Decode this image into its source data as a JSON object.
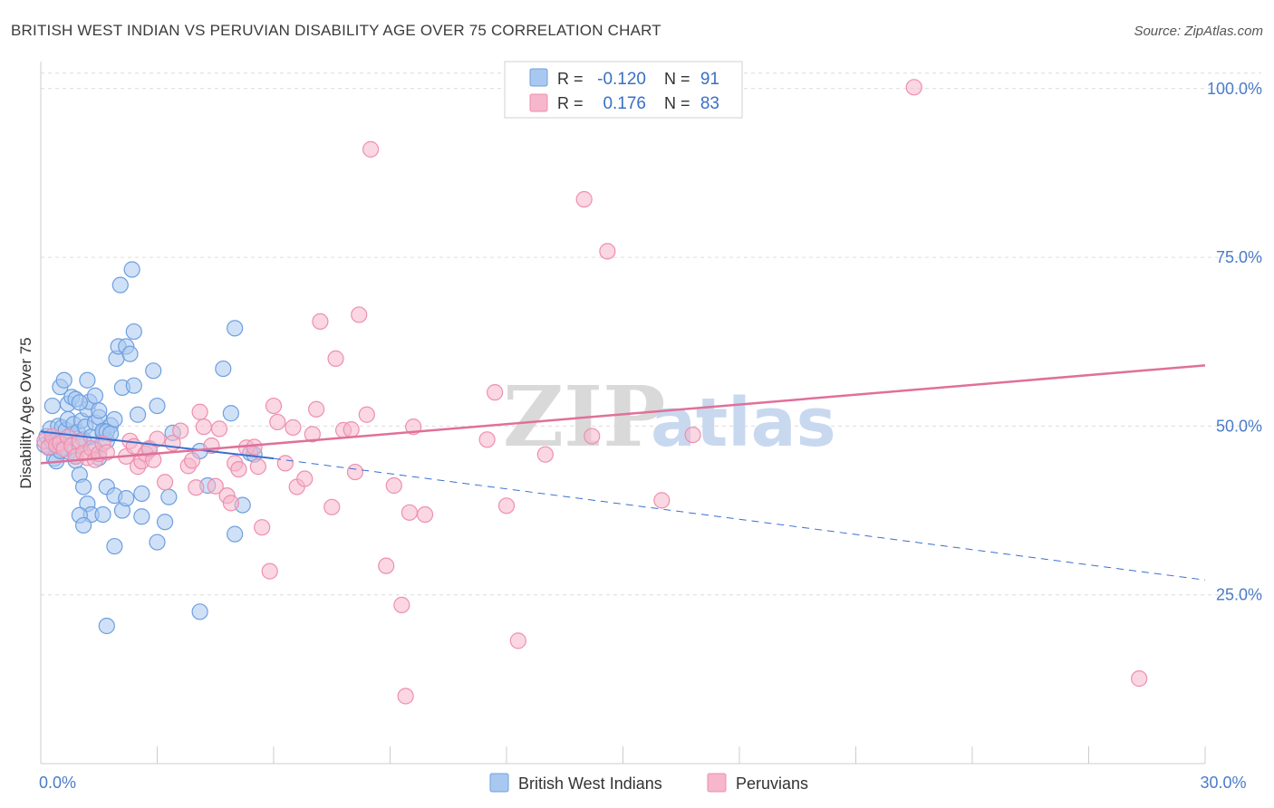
{
  "title": "BRITISH WEST INDIAN VS PERUVIAN DISABILITY AGE OVER 75 CORRELATION CHART",
  "source": "Source: ZipAtlas.com",
  "watermark": {
    "zip": "ZIP",
    "atlas": "atlas"
  },
  "colors": {
    "blue_fill": "#a9c8f0",
    "blue_stroke": "#6d9fe0",
    "blue_line": "#3a6fd0",
    "pink_fill": "#f6b6cb",
    "pink_stroke": "#ee8fae",
    "pink_line": "#e0709a",
    "grid": "#dcdcdc",
    "axis": "#cccccc"
  },
  "legend_top": {
    "rows": [
      {
        "r_label": "R =",
        "r_value": "-0.120",
        "n_label": "N =",
        "n_value": "91"
      },
      {
        "r_label": "R =",
        "r_value": "0.176",
        "n_label": "N =",
        "n_value": "83"
      }
    ]
  },
  "legend_bottom": {
    "items": [
      "British West Indians",
      "Peruvians"
    ]
  },
  "chart_data": {
    "type": "scatter",
    "ylabel": "Disability Age Over 75",
    "xlim": [
      0,
      30
    ],
    "ylim": [
      0,
      104
    ],
    "x_tick_labels": [
      {
        "value": 0,
        "label": "0.0%"
      },
      {
        "value": 30,
        "label": "30.0%"
      }
    ],
    "y_tick_labels": [
      {
        "value": 25,
        "label": "25.0%"
      },
      {
        "value": 50,
        "label": "50.0%"
      },
      {
        "value": 75,
        "label": "75.0%"
      },
      {
        "value": 100,
        "label": "100.0%"
      }
    ],
    "series": [
      {
        "name": "British West Indians",
        "trend": {
          "x0": 0,
          "y0": 49.2,
          "x1": 6,
          "y1": 45.2,
          "dashed_to_x": 30,
          "dashed_to_y": 27.2
        },
        "points": [
          [
            0.1,
            47.2
          ],
          [
            0.15,
            48.5
          ],
          [
            0.2,
            46.8
          ],
          [
            0.25,
            49.6
          ],
          [
            0.3,
            47.6
          ],
          [
            0.35,
            45.2
          ],
          [
            0.4,
            48.1
          ],
          [
            0.45,
            50.0
          ],
          [
            0.5,
            46.5
          ],
          [
            0.55,
            49.8
          ],
          [
            0.6,
            47.9
          ],
          [
            0.65,
            49.4
          ],
          [
            0.7,
            51.0
          ],
          [
            0.72,
            46.2
          ],
          [
            0.8,
            48.7
          ],
          [
            0.85,
            50.3
          ],
          [
            0.9,
            45.5
          ],
          [
            0.95,
            49.1
          ],
          [
            1.0,
            47.3
          ],
          [
            1.05,
            50.8
          ],
          [
            1.1,
            48.0
          ],
          [
            1.15,
            49.9
          ],
          [
            1.2,
            52.5
          ],
          [
            1.25,
            53.6
          ],
          [
            1.3,
            48.4
          ],
          [
            1.4,
            50.5
          ],
          [
            1.5,
            51.3
          ],
          [
            1.6,
            49.0
          ],
          [
            1.7,
            47.8
          ],
          [
            1.8,
            50.1
          ],
          [
            0.3,
            53.0
          ],
          [
            0.5,
            55.8
          ],
          [
            0.6,
            56.8
          ],
          [
            0.7,
            53.3
          ],
          [
            0.8,
            54.3
          ],
          [
            0.9,
            54.0
          ],
          [
            1.0,
            53.5
          ],
          [
            1.2,
            56.8
          ],
          [
            1.4,
            54.5
          ],
          [
            1.5,
            52.3
          ],
          [
            0.4,
            44.8
          ],
          [
            0.5,
            46.3
          ],
          [
            0.9,
            44.9
          ],
          [
            1.0,
            42.8
          ],
          [
            1.1,
            41.0
          ],
          [
            1.2,
            38.5
          ],
          [
            1.3,
            36.9
          ],
          [
            1.4,
            46.5
          ],
          [
            1.5,
            45.3
          ],
          [
            1.6,
            49.3
          ],
          [
            1.7,
            49.2
          ],
          [
            1.8,
            48.9
          ],
          [
            1.9,
            51.0
          ],
          [
            1.95,
            60.0
          ],
          [
            2.0,
            61.8
          ],
          [
            2.1,
            55.7
          ],
          [
            2.2,
            61.8
          ],
          [
            2.3,
            60.7
          ],
          [
            2.4,
            56.0
          ],
          [
            2.05,
            70.9
          ],
          [
            2.35,
            73.2
          ],
          [
            2.4,
            64.0
          ],
          [
            2.6,
            40.0
          ],
          [
            2.8,
            46.5
          ],
          [
            2.9,
            58.2
          ],
          [
            3.0,
            53.0
          ],
          [
            2.5,
            51.7
          ],
          [
            1.7,
            41.0
          ],
          [
            1.9,
            39.7
          ],
          [
            2.1,
            37.5
          ],
          [
            2.2,
            39.3
          ],
          [
            2.6,
            36.6
          ],
          [
            3.2,
            35.8
          ],
          [
            3.3,
            39.5
          ],
          [
            3.0,
            32.8
          ],
          [
            1.0,
            36.8
          ],
          [
            1.1,
            35.3
          ],
          [
            1.6,
            36.9
          ],
          [
            1.9,
            32.2
          ],
          [
            1.7,
            20.4
          ],
          [
            4.1,
            22.5
          ],
          [
            4.3,
            41.2
          ],
          [
            4.7,
            58.5
          ],
          [
            4.9,
            51.9
          ],
          [
            5.0,
            64.5
          ],
          [
            5.2,
            38.3
          ],
          [
            5.4,
            46.0
          ],
          [
            5.5,
            45.8
          ],
          [
            5.0,
            34.0
          ],
          [
            4.1,
            46.3
          ],
          [
            3.4,
            49.0
          ]
        ]
      },
      {
        "name": "Peruvians",
        "trend": {
          "x0": 0,
          "y0": 44.5,
          "x1": 30,
          "y1": 59.0
        },
        "points": [
          [
            0.1,
            47.8
          ],
          [
            0.2,
            46.9
          ],
          [
            0.3,
            48.5
          ],
          [
            0.4,
            47.2
          ],
          [
            0.5,
            47.5
          ],
          [
            0.6,
            46.6
          ],
          [
            0.7,
            48.4
          ],
          [
            0.8,
            47.1
          ],
          [
            0.9,
            45.5
          ],
          [
            1.0,
            47.8
          ],
          [
            1.1,
            46.0
          ],
          [
            1.2,
            45.3
          ],
          [
            1.3,
            46.7
          ],
          [
            1.4,
            45.0
          ],
          [
            1.5,
            45.9
          ],
          [
            1.6,
            47.4
          ],
          [
            1.7,
            46.1
          ],
          [
            2.2,
            45.5
          ],
          [
            2.3,
            47.8
          ],
          [
            2.4,
            47.0
          ],
          [
            2.5,
            44.0
          ],
          [
            2.6,
            44.8
          ],
          [
            2.7,
            45.9
          ],
          [
            2.8,
            46.7
          ],
          [
            2.9,
            45.0
          ],
          [
            3.0,
            48.1
          ],
          [
            3.2,
            41.7
          ],
          [
            3.4,
            47.5
          ],
          [
            3.6,
            49.3
          ],
          [
            3.8,
            44.1
          ],
          [
            3.9,
            44.9
          ],
          [
            4.0,
            40.9
          ],
          [
            4.1,
            52.1
          ],
          [
            4.2,
            49.9
          ],
          [
            4.4,
            47.1
          ],
          [
            4.5,
            41.1
          ],
          [
            4.6,
            49.6
          ],
          [
            4.8,
            39.7
          ],
          [
            4.9,
            38.6
          ],
          [
            5.0,
            44.5
          ],
          [
            5.1,
            43.6
          ],
          [
            5.3,
            46.8
          ],
          [
            5.5,
            46.9
          ],
          [
            5.6,
            44.0
          ],
          [
            5.7,
            35.0
          ],
          [
            5.9,
            28.5
          ],
          [
            6.0,
            53.0
          ],
          [
            6.1,
            50.6
          ],
          [
            6.3,
            44.5
          ],
          [
            6.5,
            49.8
          ],
          [
            6.6,
            41.0
          ],
          [
            6.8,
            42.2
          ],
          [
            7.0,
            48.8
          ],
          [
            7.1,
            52.5
          ],
          [
            7.2,
            65.5
          ],
          [
            7.5,
            38.0
          ],
          [
            7.6,
            60.0
          ],
          [
            7.8,
            49.4
          ],
          [
            8.0,
            49.5
          ],
          [
            8.1,
            43.2
          ],
          [
            8.2,
            66.5
          ],
          [
            8.4,
            51.7
          ],
          [
            8.5,
            91.0
          ],
          [
            8.9,
            29.3
          ],
          [
            9.1,
            41.2
          ],
          [
            9.3,
            23.5
          ],
          [
            9.4,
            10.0
          ],
          [
            9.5,
            37.2
          ],
          [
            9.6,
            49.9
          ],
          [
            9.9,
            36.9
          ],
          [
            11.5,
            48.0
          ],
          [
            11.7,
            55.0
          ],
          [
            12.0,
            38.2
          ],
          [
            12.3,
            18.2
          ],
          [
            13.0,
            45.8
          ],
          [
            14.0,
            83.6
          ],
          [
            14.2,
            48.5
          ],
          [
            14.6,
            75.9
          ],
          [
            16.0,
            39.0
          ],
          [
            16.8,
            48.7
          ],
          [
            14.0,
            100.2
          ],
          [
            22.5,
            100.2
          ],
          [
            28.3,
            12.6
          ]
        ]
      }
    ]
  }
}
